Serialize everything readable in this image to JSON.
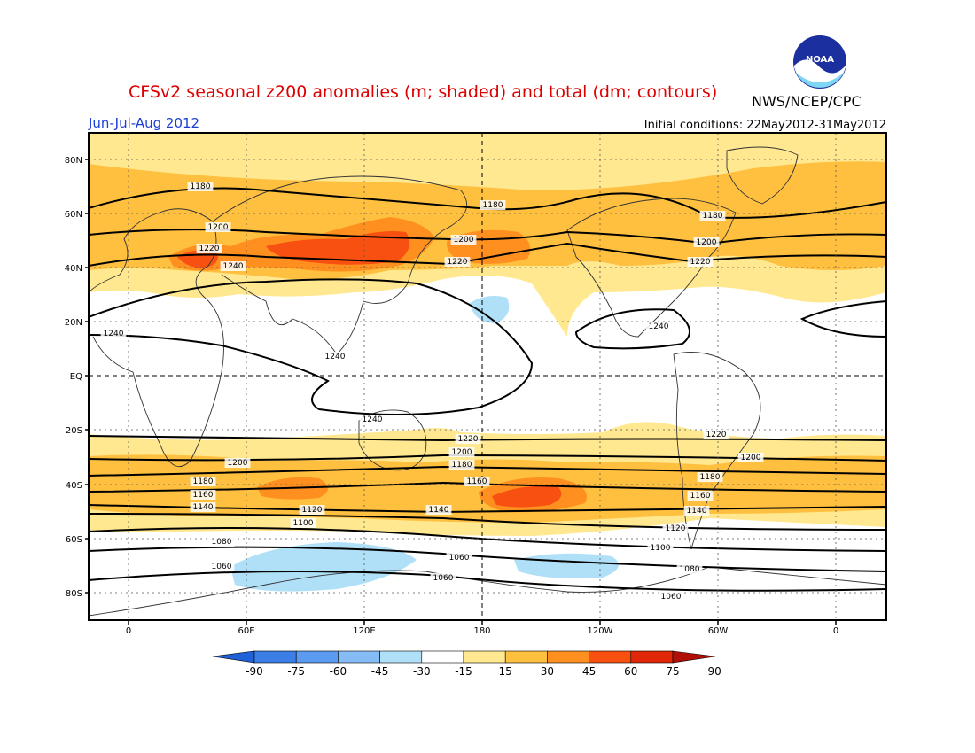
{
  "title": "CFSv2 seasonal z200 anomalies (m; shaded) and total (dm; contours)",
  "credit": "NWS/NCEP/CPC",
  "logo_text": "NOAA",
  "season": "Jun-Jul-Aug 2012",
  "initial_conditions": "Initial conditions: 22May2012-31May2012",
  "colors": {
    "title": "#dd0000",
    "season": "#1a3fd6",
    "text": "#000000"
  },
  "lat_labels": [
    "80N",
    "60N",
    "40N",
    "20N",
    "EQ",
    "20S",
    "40S",
    "60S",
    "80S"
  ],
  "lon_labels": [
    "0",
    "60E",
    "120E",
    "180",
    "120W",
    "60W",
    "0"
  ],
  "contour_labels": [
    "1180",
    "1200",
    "1220",
    "1240",
    "1180",
    "1200",
    "1220",
    "1180",
    "1200",
    "1220",
    "1240",
    "1240",
    "1240",
    "1240",
    "1220",
    "1200",
    "1180",
    "1160",
    "1140",
    "1120",
    "1100",
    "1080",
    "1060",
    "1200",
    "1180",
    "1160",
    "1140",
    "1220",
    "1200",
    "1180",
    "1160",
    "1140",
    "1120",
    "1100",
    "1080",
    "1060",
    "1060",
    "1220",
    "1200",
    "1180",
    "1160",
    "1140",
    "1120",
    "1100",
    "1080",
    "1060"
  ],
  "colorbar": {
    "ticks": [
      "-90",
      "-75",
      "-60",
      "-45",
      "-30",
      "-15",
      "15",
      "30",
      "45",
      "60",
      "75",
      "90"
    ],
    "colors": [
      "#2060d8",
      "#3a7ee6",
      "#5a9af0",
      "#86bcf6",
      "#b0e0f8",
      "#ffffff",
      "#ffe890",
      "#ffc040",
      "#ff9020",
      "#f85010",
      "#e02808",
      "#b01008"
    ]
  }
}
